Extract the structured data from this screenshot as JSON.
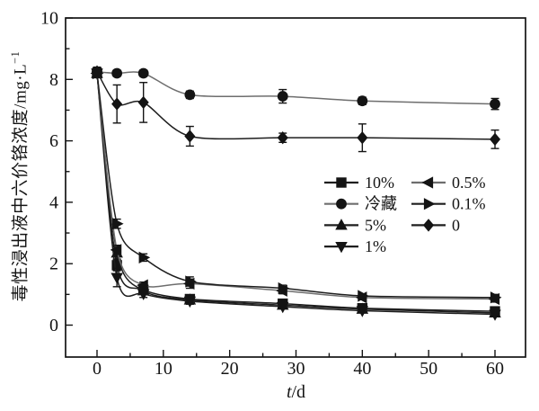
{
  "figure": {
    "background": "#ffffff",
    "ink_color": "#141414",
    "muted_line_color": "#6e6e6e"
  },
  "chart_data": {
    "type": "line",
    "title": "",
    "xlabel": "t/d",
    "xlabel_parts": {
      "var": "t",
      "rest": "/d"
    },
    "ylabel": "毒性浸出液中六价铬浓度/mg·L⁻¹",
    "ylabel_parts": {
      "main": "毒性浸出液中六价铬浓度/mg·L",
      "sup": "−1"
    },
    "xlim": [
      -4.8,
      64.7
    ],
    "ylim": [
      -1.05,
      10
    ],
    "x_ticks": [
      0,
      10,
      20,
      30,
      40,
      50,
      60
    ],
    "x_minor_ticks": [
      5,
      15,
      25,
      35,
      45,
      55
    ],
    "y_ticks": [
      0,
      2,
      4,
      6,
      8,
      10
    ],
    "y_minor_ticks": [
      1,
      3,
      5,
      7,
      9
    ],
    "grid": false,
    "legend_position": "inside-right-middle",
    "x": [
      0,
      3,
      7,
      14,
      28,
      40,
      60
    ],
    "series": [
      {
        "id": "10pct",
        "name": "10%",
        "marker": "square",
        "line_color": "#1e1e1e",
        "values": [
          8.2,
          1.95,
          1.15,
          0.85,
          0.7,
          0.55,
          0.45
        ],
        "errors": [
          0.12,
          0.18,
          0.1,
          0.08,
          0.06,
          0.05,
          0.05
        ]
      },
      {
        "id": "cold-storage",
        "name": "冷藏",
        "marker": "circle",
        "line_color": "#6e6e6e",
        "values": [
          8.25,
          8.2,
          8.2,
          7.5,
          7.45,
          7.3,
          7.2
        ],
        "errors": [
          0.12,
          0.1,
          0.1,
          0.12,
          0.22,
          0.12,
          0.18
        ]
      },
      {
        "id": "5pct",
        "name": "5%",
        "marker": "triangle-up",
        "line_color": "#1e1e1e",
        "values": [
          8.2,
          2.35,
          1.12,
          0.82,
          0.65,
          0.52,
          0.4
        ],
        "errors": [
          0.12,
          0.2,
          0.1,
          0.08,
          0.06,
          0.05,
          0.05
        ]
      },
      {
        "id": "1pct",
        "name": "1%",
        "marker": "triangle-down",
        "line_color": "#1e1e1e",
        "values": [
          8.2,
          1.55,
          1.02,
          0.78,
          0.6,
          0.47,
          0.35
        ],
        "errors": [
          0.12,
          0.3,
          0.12,
          0.1,
          0.06,
          0.05,
          0.05
        ]
      },
      {
        "id": "0.5pct",
        "name": "0.5%",
        "marker": "triangle-left",
        "line_color": "#6e6e6e",
        "values": [
          8.2,
          2.45,
          1.3,
          1.35,
          1.12,
          0.9,
          0.85
        ],
        "errors": [
          0.12,
          0.15,
          0.1,
          0.15,
          0.1,
          0.06,
          0.1
        ]
      },
      {
        "id": "0.1pct",
        "name": "0.1%",
        "marker": "triangle-right",
        "line_color": "#1e1e1e",
        "values": [
          8.2,
          3.3,
          2.2,
          1.42,
          1.2,
          0.95,
          0.9
        ],
        "errors": [
          0.12,
          0.15,
          0.12,
          0.15,
          0.1,
          0.06,
          0.1
        ]
      },
      {
        "id": "untreated-0",
        "name": "0",
        "marker": "diamond",
        "line_color": "#1e1e1e",
        "values": [
          8.25,
          7.2,
          7.25,
          6.15,
          6.1,
          6.1,
          6.05
        ],
        "errors": [
          0.15,
          0.62,
          0.65,
          0.32,
          0.15,
          0.45,
          0.3
        ]
      }
    ],
    "legend_columns": [
      [
        "10%",
        "冷藏",
        "5%",
        "1%"
      ],
      [
        "0.5%",
        "0.1%",
        "0"
      ]
    ]
  }
}
